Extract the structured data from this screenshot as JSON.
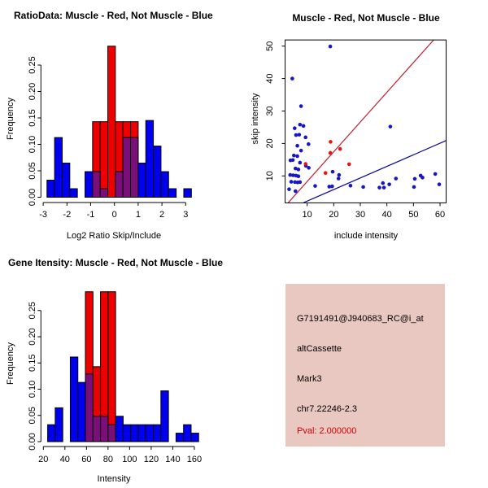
{
  "figure": {
    "background": "#FFFFFF"
  },
  "panels": {
    "ratio_hist": {
      "title": "RatioData: Muscle - Red, Not Muscle - Blue",
      "xlabel": "Log2 Ratio Skip/Include",
      "ylabel": "Frequency"
    },
    "scatter": {
      "title": "Muscle - Red, Not Muscle - Blue",
      "xlabel": "include intensity",
      "ylabel": "skip intensity"
    },
    "gene_hist": {
      "title": "Gene Itensity: Muscle - Red, Not Muscle - Blue",
      "xlabel": "Intensity",
      "ylabel": "Frequency"
    },
    "info_panel": {
      "bg": "#E9C8C1",
      "text_color": "#000000",
      "lines": [
        "G7191491@J940683_RC@i_at",
        "altCassette",
        "Mark3",
        "chr7.22246-2.3"
      ],
      "pval": "Pval: 2.000000",
      "pval_color": "#CC0000"
    }
  },
  "chart_data": [
    {
      "id": "ratio_hist",
      "type": "bar",
      "subtype": "overlaid-histogram",
      "title": "RatioData: Muscle - Red, Not Muscle - Blue",
      "xlabel": "Log2 Ratio Skip/Include",
      "ylabel": "Frequency",
      "x_ticks": [
        -3,
        -2,
        -1,
        0,
        1,
        2,
        3
      ],
      "y_ticks": [
        "0.00",
        "0.05",
        "0.10",
        "0.15",
        "0.20",
        "0.25"
      ],
      "y_tick_values": [
        0,
        0.05,
        0.1,
        0.15,
        0.2,
        0.25
      ],
      "xlim": [
        -3.1,
        3.5
      ],
      "ylim": [
        0,
        0.2857
      ],
      "grid": false,
      "legend": "colors named in title",
      "overlap_color": "#7A0F7A",
      "series": [
        {
          "name": "Muscle",
          "color": "#EE0000",
          "n": 14,
          "bins": [
            {
              "x0": -0.92,
              "x1": -0.6,
              "count": 2
            },
            {
              "x0": -0.6,
              "x1": -0.28,
              "count": 2
            },
            {
              "x0": -0.28,
              "x1": 0.04,
              "count": 4
            },
            {
              "x0": 0.04,
              "x1": 0.36,
              "count": 2
            },
            {
              "x0": 0.36,
              "x1": 0.68,
              "count": 2
            },
            {
              "x0": 0.68,
              "x1": 1.0,
              "count": 2
            }
          ]
        },
        {
          "name": "Not Muscle",
          "color": "#0000EE",
          "n": 62,
          "bins": [
            {
              "x0": -2.84,
              "x1": -2.52,
              "count": 2
            },
            {
              "x0": -2.52,
              "x1": -2.2,
              "count": 7
            },
            {
              "x0": -2.2,
              "x1": -1.88,
              "count": 4
            },
            {
              "x0": -1.88,
              "x1": -1.56,
              "count": 1
            },
            {
              "x0": -1.56,
              "x1": -1.24,
              "count": 0
            },
            {
              "x0": -1.24,
              "x1": -0.92,
              "count": 3
            },
            {
              "x0": -0.92,
              "x1": -0.6,
              "count": 3,
              "overlap": true
            },
            {
              "x0": -0.6,
              "x1": -0.28,
              "count": 1,
              "overlap": true
            },
            {
              "x0": -0.28,
              "x1": 0.04,
              "count": 0
            },
            {
              "x0": 0.04,
              "x1": 0.36,
              "count": 3,
              "overlap": true
            },
            {
              "x0": 0.36,
              "x1": 0.68,
              "count": 7,
              "overlap": true
            },
            {
              "x0": 0.68,
              "x1": 1.0,
              "count": 7,
              "overlap": true
            },
            {
              "x0": 1.0,
              "x1": 1.32,
              "count": 4
            },
            {
              "x0": 1.32,
              "x1": 1.64,
              "count": 9
            },
            {
              "x0": 1.64,
              "x1": 1.96,
              "count": 6
            },
            {
              "x0": 1.96,
              "x1": 2.28,
              "count": 3
            },
            {
              "x0": 2.28,
              "x1": 2.6,
              "count": 1
            },
            {
              "x0": 2.6,
              "x1": 2.92,
              "count": 0
            },
            {
              "x0": 2.92,
              "x1": 3.24,
              "count": 1
            }
          ]
        }
      ]
    },
    {
      "id": "scatter",
      "type": "scatter",
      "title": "Muscle - Red, Not Muscle - Blue",
      "xlabel": "include intensity",
      "ylabel": "skip intensity",
      "x_ticks": [
        10,
        20,
        30,
        40,
        50,
        60
      ],
      "y_ticks": [
        10,
        20,
        30,
        40,
        50
      ],
      "xlim": [
        1.7,
        62.3
      ],
      "ylim": [
        1.7,
        51.9
      ],
      "grid": false,
      "frame_box": true,
      "series": [
        {
          "name": "Not Muscle",
          "color": "#1616C8",
          "points": [
            [
              4.4,
              40.0
            ],
            [
              18.7,
              49.9
            ],
            [
              7.7,
              31.5
            ],
            [
              41.3,
              25.2
            ],
            [
              7.3,
              25.8
            ],
            [
              8.6,
              25.4
            ],
            [
              5.3,
              24.7
            ],
            [
              5.8,
              22.6
            ],
            [
              7.0,
              22.7
            ],
            [
              9.4,
              21.9
            ],
            [
              10.5,
              19.8
            ],
            [
              6.3,
              19.3
            ],
            [
              7.7,
              17.8
            ],
            [
              5.0,
              16.3
            ],
            [
              6.3,
              16.1
            ],
            [
              3.7,
              14.8
            ],
            [
              4.6,
              14.9
            ],
            [
              7.3,
              14.1
            ],
            [
              9.5,
              13.1
            ],
            [
              10.6,
              12.5
            ],
            [
              5.6,
              12.3
            ],
            [
              6.7,
              12.0
            ],
            [
              3.6,
              10.3
            ],
            [
              4.7,
              10.2
            ],
            [
              5.8,
              10.1
            ],
            [
              6.7,
              9.9
            ],
            [
              4.0,
              8.2
            ],
            [
              5.4,
              8.1
            ],
            [
              6.4,
              8.0
            ],
            [
              7.3,
              8.1
            ],
            [
              3.2,
              5.9
            ],
            [
              5.6,
              5.3
            ],
            [
              13.0,
              6.9
            ],
            [
              19.6,
              11.3
            ],
            [
              22.0,
              10.3
            ],
            [
              21.8,
              9.2
            ],
            [
              18.3,
              6.7
            ],
            [
              19.4,
              6.8
            ],
            [
              26.3,
              7.0
            ],
            [
              31.1,
              6.6
            ],
            [
              37.2,
              6.4
            ],
            [
              38.9,
              6.4
            ],
            [
              38.5,
              7.8
            ],
            [
              40.9,
              7.4
            ],
            [
              43.4,
              9.2
            ],
            [
              50.2,
              6.6
            ],
            [
              50.5,
              9.1
            ],
            [
              52.7,
              10.1
            ],
            [
              53.4,
              9.5
            ],
            [
              58.2,
              10.6
            ],
            [
              59.7,
              7.4
            ]
          ]
        },
        {
          "name": "Muscle",
          "color": "#EE1111",
          "points": [
            [
              9.4,
              13.7
            ],
            [
              16.9,
              10.9
            ],
            [
              18.8,
              20.5
            ],
            [
              18.7,
              17.1
            ],
            [
              22.4,
              18.3
            ],
            [
              25.8,
              13.6
            ]
          ]
        }
      ],
      "lines": [
        {
          "name": "muscle-fit-line",
          "color": "#C22233",
          "p1": [
            2.85,
            1.73
          ],
          "p2": [
            57.6,
            51.9
          ]
        },
        {
          "name": "not-muscle-fit-line",
          "color": "#0A0A99",
          "p1": [
            8.57,
            1.73
          ],
          "p2": [
            62.3,
            20.9
          ]
        }
      ]
    },
    {
      "id": "gene_hist",
      "type": "bar",
      "subtype": "overlaid-histogram",
      "title": "Gene Itensity: Muscle - Red, Not Muscle - Blue",
      "xlabel": "Intensity",
      "ylabel": "Frequency",
      "x_ticks": [
        20,
        40,
        60,
        80,
        100,
        120,
        140,
        160
      ],
      "y_ticks": [
        "0.00",
        "0.05",
        "0.10",
        "0.15",
        "0.20",
        "0.25"
      ],
      "y_tick_values": [
        0,
        0.05,
        0.1,
        0.15,
        0.2,
        0.25
      ],
      "xlim": [
        18,
        167
      ],
      "ylim": [
        0,
        0.2857
      ],
      "grid": false,
      "overlap_color": "#7A0F7A",
      "series": [
        {
          "name": "Muscle",
          "color": "#EE0000",
          "n": 14,
          "bins": [
            {
              "x0": 59,
              "x1": 66,
              "count": 4
            },
            {
              "x0": 66,
              "x1": 73,
              "count": 2
            },
            {
              "x0": 73,
              "x1": 80,
              "count": 4
            },
            {
              "x0": 80,
              "x1": 87,
              "count": 4
            }
          ]
        },
        {
          "name": "Not Muscle",
          "color": "#0000EE",
          "n": 62,
          "bins": [
            {
              "x0": 24,
              "x1": 31,
              "count": 2
            },
            {
              "x0": 31,
              "x1": 38,
              "count": 4
            },
            {
              "x0": 38,
              "x1": 45,
              "count": 0
            },
            {
              "x0": 45,
              "x1": 52,
              "count": 10
            },
            {
              "x0": 52,
              "x1": 59,
              "count": 7
            },
            {
              "x0": 59,
              "x1": 66,
              "count": 8,
              "overlap": true
            },
            {
              "x0": 66,
              "x1": 73,
              "count": 3,
              "overlap": true
            },
            {
              "x0": 73,
              "x1": 80,
              "count": 3,
              "overlap": true
            },
            {
              "x0": 80,
              "x1": 87,
              "count": 2,
              "overlap": true
            },
            {
              "x0": 87,
              "x1": 94,
              "count": 3
            },
            {
              "x0": 94,
              "x1": 101,
              "count": 2
            },
            {
              "x0": 101,
              "x1": 108,
              "count": 2
            },
            {
              "x0": 108,
              "x1": 115,
              "count": 2
            },
            {
              "x0": 115,
              "x1": 122,
              "count": 2
            },
            {
              "x0": 122,
              "x1": 129,
              "count": 2
            },
            {
              "x0": 129,
              "x1": 136,
              "count": 6
            },
            {
              "x0": 136,
              "x1": 143,
              "count": 0
            },
            {
              "x0": 143,
              "x1": 150,
              "count": 1
            },
            {
              "x0": 150,
              "x1": 157,
              "count": 2
            },
            {
              "x0": 157,
              "x1": 164,
              "count": 1
            }
          ]
        }
      ]
    }
  ]
}
